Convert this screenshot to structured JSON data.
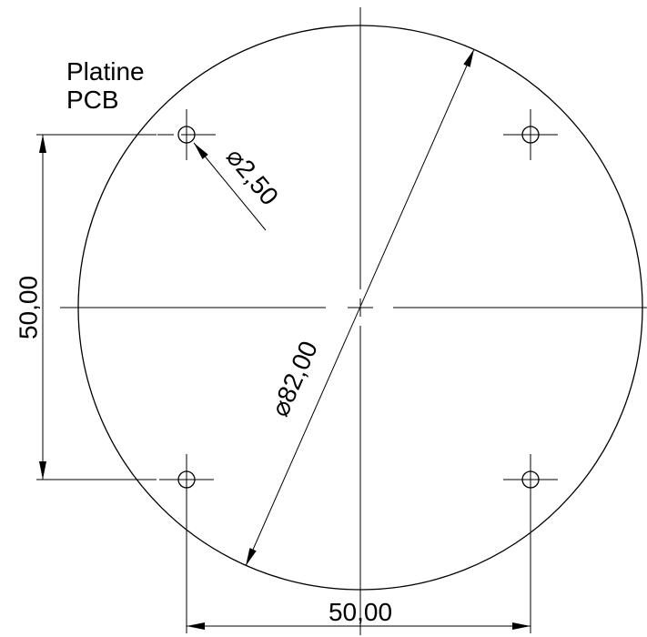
{
  "title_lines": [
    "Platine",
    "PCB"
  ],
  "dimensions": {
    "left_spacing": "50,00",
    "bottom_spacing": "50,00",
    "outer_diameter": "⌀82,00",
    "hole_diameter": "⌀2,50"
  }
}
